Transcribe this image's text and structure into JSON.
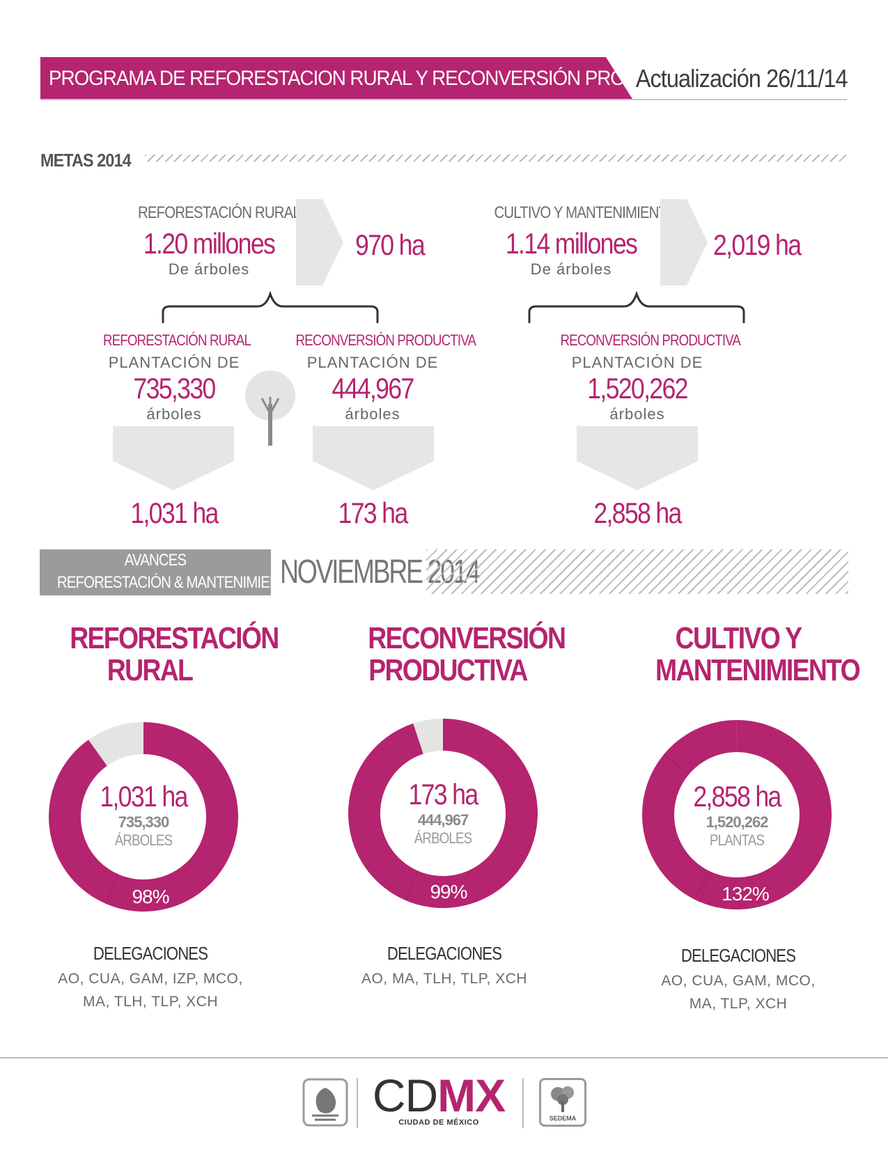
{
  "header": {
    "title": "PROGRAMA DE REFORESTACION RURAL Y RECONVERSIÓN PRODUCTIVA",
    "update": "Actualización 26/11/14"
  },
  "metas": {
    "title": "METAS 2014",
    "goals": [
      {
        "label": "REFORESTACIÓN RURAL",
        "value": "1.20 millones",
        "unit": "De árboles",
        "area": "970 ha",
        "breakdown": [
          {
            "label": "REFORESTACIÓN RURAL",
            "prefix": "PLANTACIÓN DE",
            "value": "735,330",
            "unit": "árboles",
            "area": "1,031 ha"
          },
          {
            "label": "RECONVERSIÓN PRODUCTIVA",
            "prefix": "PLANTACIÓN DE",
            "value": "444,967",
            "unit": "árboles",
            "area": "173 ha"
          }
        ]
      },
      {
        "label": "CULTIVO Y MANTENIMIENTO",
        "value": "1.14 millones",
        "unit": "De árboles",
        "area": "2,019 ha",
        "breakdown": [
          {
            "label": "RECONVERSIÓN PRODUCTIVA",
            "prefix": "PLANTACIÓN DE",
            "value": "1,520,262",
            "unit": "árboles",
            "area": "2,858 ha"
          }
        ]
      }
    ]
  },
  "avances": {
    "line1": "AVANCES",
    "line2": "REFORESTACIÓN & MANTENIMIENTO",
    "period": "NOVIEMBRE 2014"
  },
  "colors": {
    "accent": "#b5246f",
    "remainder": "#e4e4e4"
  },
  "chart_data": [
    {
      "type": "pie",
      "title": "REFORESTACIÓN RURAL",
      "center_value": "1,031 ha",
      "center_count": "735,330",
      "center_unit": "ÁRBOLES",
      "percent": 98,
      "percent_label": "98%",
      "delegaciones_title": "DELEGACIONES",
      "delegaciones": [
        "AO, CUA, GAM, IZP, MCO,",
        "MA, TLH, TLP, XCH"
      ]
    },
    {
      "type": "pie",
      "title": "RECONVERSIÓN PRODUCTIVA",
      "center_value": "173 ha",
      "center_count": "444,967",
      "center_unit": "ÁRBOLES",
      "percent": 99,
      "percent_label": "99%",
      "delegaciones_title": "DELEGACIONES",
      "delegaciones": [
        "AO, MA, TLH, TLP, XCH"
      ]
    },
    {
      "type": "pie",
      "title": "CULTIVO Y MANTENIMIENTO",
      "center_value": "2,858 ha",
      "center_count": "1,520,262",
      "center_unit": "PLANTAS",
      "percent": 132,
      "percent_label": "132%",
      "delegaciones_title": "DELEGACIONES",
      "delegaciones": [
        "AO, CUA, GAM, MCO,",
        "MA, TLP, XCH"
      ]
    }
  ],
  "footer": {
    "logo": "CDMX",
    "logo_sub": "CIUDAD DE MÉXICO",
    "agency": "SEDEMA"
  }
}
